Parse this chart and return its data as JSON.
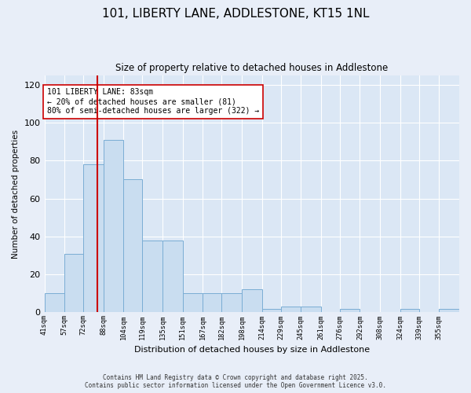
{
  "title_line1": "101, LIBERTY LANE, ADDLESTONE, KT15 1NL",
  "title_line2": "Size of property relative to detached houses in Addlestone",
  "xlabel": "Distribution of detached houses by size in Addlestone",
  "ylabel": "Number of detached properties",
  "footer_line1": "Contains HM Land Registry data © Crown copyright and database right 2025.",
  "footer_line2": "Contains public sector information licensed under the Open Government Licence v3.0.",
  "annotation_line1": "101 LIBERTY LANE: 83sqm",
  "annotation_line2": "← 20% of detached houses are smaller (81)",
  "annotation_line3": "80% of semi-detached houses are larger (322) →",
  "bar_color": "#c9ddf0",
  "bar_edge_color": "#7aadd4",
  "vline_color": "#cc0000",
  "vline_x": 83,
  "background_color": "#e8eef8",
  "plot_bg_color": "#dbe7f5",
  "grid_color": "#ffffff",
  "bins": [
    41,
    57,
    72,
    88,
    104,
    119,
    135,
    151,
    167,
    182,
    198,
    214,
    229,
    245,
    261,
    276,
    292,
    308,
    324,
    339,
    355,
    371
  ],
  "counts": [
    10,
    31,
    78,
    91,
    70,
    38,
    38,
    10,
    10,
    10,
    12,
    2,
    3,
    3,
    0,
    2,
    0,
    0,
    2,
    0,
    2
  ],
  "ylim": [
    0,
    125
  ],
  "yticks": [
    0,
    20,
    40,
    60,
    80,
    100,
    120
  ]
}
